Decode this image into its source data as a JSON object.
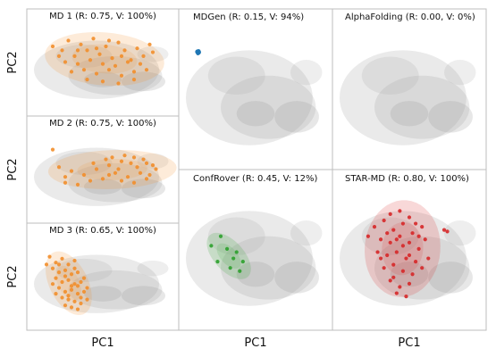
{
  "chart_data": {
    "type": "scatter",
    "x_axis_label": "PC1",
    "y_axis_label": "PC2",
    "background_density_color": "#9e9e9e",
    "panels": [
      {
        "id": "md1",
        "title": "MD 1 (R: 0.75, V: 100%)",
        "color": "#f28e2b",
        "points": [
          [
            -1.6,
            1.1
          ],
          [
            -1.3,
            0.9
          ],
          [
            -1.1,
            1.4
          ],
          [
            -0.9,
            0.6
          ],
          [
            -0.7,
            1.2
          ],
          [
            -0.5,
            0.9
          ],
          [
            -0.3,
            1.5
          ],
          [
            -0.1,
            0.7
          ],
          [
            0.1,
            1.1
          ],
          [
            0.3,
            0.5
          ],
          [
            0.5,
            1.3
          ],
          [
            0.7,
            0.9
          ],
          [
            0.9,
            0.4
          ],
          [
            1.1,
            1.0
          ],
          [
            1.3,
            0.6
          ],
          [
            1.5,
            1.2
          ],
          [
            -1.2,
            0.3
          ],
          [
            -0.8,
            0.2
          ],
          [
            -0.4,
            0.4
          ],
          [
            0.0,
            0.2
          ],
          [
            0.4,
            0.1
          ],
          [
            0.8,
            0.3
          ],
          [
            1.2,
            0.2
          ],
          [
            -1.0,
            -0.2
          ],
          [
            -0.6,
            -0.1
          ],
          [
            -0.2,
            -0.3
          ],
          [
            0.2,
            -0.1
          ],
          [
            0.6,
            -0.4
          ],
          [
            1.0,
            -0.2
          ],
          [
            1.4,
            -0.1
          ],
          [
            -0.5,
            -0.6
          ],
          [
            0.0,
            -0.7
          ],
          [
            0.5,
            -0.8
          ],
          [
            1.0,
            -0.6
          ],
          [
            -1.4,
            0.6
          ],
          [
            1.6,
            0.8
          ],
          [
            0.2,
            1.4
          ],
          [
            -0.2,
            1.0
          ],
          [
            0.6,
            0.6
          ],
          [
            -0.8,
            0.9
          ]
        ]
      },
      {
        "id": "mdgen",
        "title": "MDGen (R: 0.15, V: 94%)",
        "color": "#1f77b4",
        "points": [
          [
            -1.82,
            1.35
          ],
          [
            -1.8,
            1.33
          ],
          [
            -1.84,
            1.37
          ],
          [
            -1.81,
            1.31
          ],
          [
            -1.79,
            1.36
          ],
          [
            -1.83,
            1.32
          ],
          [
            -1.8,
            1.38
          ],
          [
            -1.82,
            1.3
          ],
          [
            -1.78,
            1.34
          ],
          [
            -1.85,
            1.35
          ],
          [
            -1.81,
            1.36
          ],
          [
            -1.79,
            1.32
          ]
        ]
      },
      {
        "id": "alphafolding",
        "title": "AlphaFolding (R: 0.00, V: 0%)",
        "color": "#1f77b4",
        "points": []
      },
      {
        "id": "md2",
        "title": "MD 2 (R: 0.75, V: 100%)",
        "color": "#f28e2b",
        "points": [
          [
            -1.4,
            0.4
          ],
          [
            -1.0,
            0.2
          ],
          [
            -0.6,
            0.0
          ],
          [
            -0.2,
            0.3
          ],
          [
            0.2,
            0.5
          ],
          [
            0.6,
            0.7
          ],
          [
            1.0,
            0.9
          ],
          [
            1.4,
            0.6
          ],
          [
            1.7,
            0.3
          ],
          [
            1.2,
            0.1
          ],
          [
            0.8,
            -0.1
          ],
          [
            0.4,
            0.1
          ],
          [
            0.0,
            -0.2
          ],
          [
            -0.4,
            -0.3
          ],
          [
            -0.8,
            -0.5
          ],
          [
            0.3,
            0.9
          ],
          [
            0.7,
            1.0
          ],
          [
            1.1,
            0.4
          ],
          [
            1.5,
            0.0
          ],
          [
            0.9,
            0.6
          ],
          [
            0.5,
            0.3
          ],
          [
            1.3,
            0.8
          ],
          [
            -1.6,
            1.3
          ],
          [
            0.1,
            0.8
          ],
          [
            -0.3,
            0.6
          ],
          [
            1.6,
            0.5
          ],
          [
            0.6,
            -0.3
          ],
          [
            1.0,
            -0.4
          ],
          [
            1.4,
            -0.2
          ],
          [
            -1.2,
            -0.4
          ],
          [
            0.2,
            0.0
          ],
          [
            -1.2,
            -0.1
          ]
        ]
      },
      {
        "id": "confrover",
        "title": "ConfRover (R: 0.45, V: 12%)",
        "color": "#2ca02c",
        "points": [
          [
            -1.4,
            0.3
          ],
          [
            -1.1,
            0.6
          ],
          [
            -0.9,
            0.2
          ],
          [
            -0.7,
            -0.1
          ],
          [
            -0.6,
            0.1
          ],
          [
            -0.4,
            -0.2
          ],
          [
            -0.8,
            -0.4
          ],
          [
            -0.5,
            -0.5
          ],
          [
            -1.2,
            -0.2
          ]
        ]
      },
      {
        "id": "starmd",
        "title": "STAR-MD (R: 0.80, V: 100%)",
        "color": "#d62728",
        "points": [
          [
            -1.1,
            0.9
          ],
          [
            -0.8,
            1.1
          ],
          [
            -0.5,
            0.8
          ],
          [
            -0.2,
            1.0
          ],
          [
            0.1,
            0.7
          ],
          [
            0.4,
            0.9
          ],
          [
            -0.9,
            0.5
          ],
          [
            -0.6,
            0.4
          ],
          [
            -0.3,
            0.6
          ],
          [
            0.0,
            0.4
          ],
          [
            0.3,
            0.2
          ],
          [
            -1.0,
            0.1
          ],
          [
            -0.7,
            0.0
          ],
          [
            -0.4,
            0.1
          ],
          [
            -0.1,
            -0.1
          ],
          [
            0.2,
            -0.2
          ],
          [
            -0.8,
            -0.4
          ],
          [
            -0.5,
            -0.3
          ],
          [
            -0.2,
            -0.5
          ],
          [
            0.1,
            -0.6
          ],
          [
            -0.6,
            -0.8
          ],
          [
            -0.3,
            -1.0
          ],
          [
            0.0,
            -0.9
          ],
          [
            -0.4,
            -1.2
          ],
          [
            -0.1,
            -1.3
          ],
          [
            0.5,
            0.5
          ],
          [
            0.6,
            -0.1
          ],
          [
            -1.3,
            0.6
          ],
          [
            1.1,
            0.8
          ],
          [
            1.2,
            0.75
          ],
          [
            -0.3,
            1.4
          ],
          [
            0.0,
            1.2
          ],
          [
            -0.6,
            1.3
          ],
          [
            -0.9,
            -0.1
          ],
          [
            0.4,
            -0.4
          ],
          [
            -0.2,
            0.3
          ],
          [
            0.3,
            0.6
          ],
          [
            -0.5,
            -0.7
          ],
          [
            -0.4,
            0.5
          ],
          [
            0.0,
            0.0
          ],
          [
            -0.7,
            0.7
          ],
          [
            0.2,
            1.0
          ]
        ]
      },
      {
        "id": "md3",
        "title": "MD 3 (R: 0.65, V: 100%)",
        "color": "#f28e2b",
        "points": [
          [
            -1.7,
            1.3
          ],
          [
            -1.5,
            1.0
          ],
          [
            -1.3,
            1.2
          ],
          [
            -1.1,
            0.9
          ],
          [
            -0.9,
            1.1
          ],
          [
            -1.6,
            0.7
          ],
          [
            -1.4,
            0.5
          ],
          [
            -1.2,
            0.6
          ],
          [
            -1.0,
            0.4
          ],
          [
            -0.8,
            0.5
          ],
          [
            -1.5,
            0.2
          ],
          [
            -1.3,
            0.0
          ],
          [
            -1.1,
            0.1
          ],
          [
            -0.9,
            -0.1
          ],
          [
            -0.7,
            0.0
          ],
          [
            -1.4,
            -0.3
          ],
          [
            -1.2,
            -0.5
          ],
          [
            -1.0,
            -0.4
          ],
          [
            -0.8,
            -0.6
          ],
          [
            -0.6,
            -0.5
          ],
          [
            -1.3,
            -0.8
          ],
          [
            -1.1,
            -0.9
          ],
          [
            -0.9,
            -1.0
          ],
          [
            -0.7,
            -1.1
          ],
          [
            -0.5,
            -0.9
          ],
          [
            -1.2,
            -1.2
          ],
          [
            -1.0,
            -1.3
          ],
          [
            -0.8,
            -1.4
          ],
          [
            -1.6,
            -0.1
          ],
          [
            -1.8,
            0.9
          ],
          [
            -0.6,
            0.2
          ],
          [
            -0.5,
            -0.3
          ],
          [
            -1.5,
            -0.6
          ],
          [
            -1.2,
            0.3
          ],
          [
            -1.0,
            -0.2
          ],
          [
            -0.7,
            -0.8
          ],
          [
            -1.4,
            0.9
          ],
          [
            -0.9,
            0.7
          ],
          [
            -1.1,
            -0.7
          ],
          [
            -0.8,
            -0.2
          ]
        ]
      }
    ]
  }
}
